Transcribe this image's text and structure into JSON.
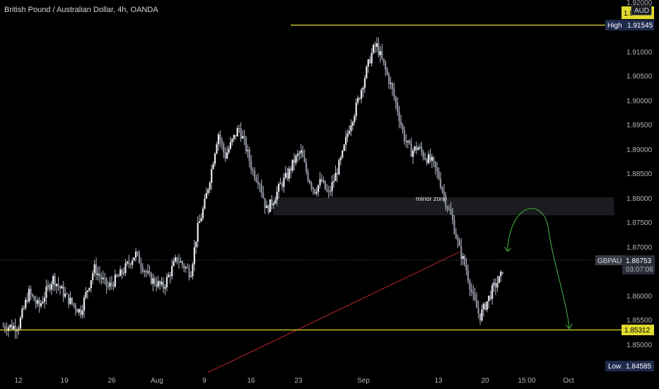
{
  "header": {
    "title": "British Pound / Australian Dollar, 4h, OANDA"
  },
  "axis": {
    "currency_label": "AUD"
  },
  "colors": {
    "background": "#000000",
    "candle": "#b7bcc7",
    "level_line": "#e0da2e",
    "trend_line": "#c0282c",
    "projection_arrow": "#3f9c3a",
    "zone_fill": "#1b1c20",
    "badge_dark": "#1e2b4d",
    "last_price_badge": "#3a3d45"
  },
  "badges": {
    "high": {
      "label": "High",
      "value": "1.91545"
    },
    "low": {
      "label": "Low",
      "value": "1.84585"
    },
    "support": {
      "value": "1.85312"
    },
    "last": {
      "symbol": "GBPAUD",
      "price": "1.86753",
      "countdown": "03:07:06"
    },
    "top_partial": "1.9"
  },
  "annotations": {
    "zone_label": "minor zone"
  },
  "chart_data": {
    "type": "candlestick",
    "title": "British Pound / Australian Dollar, 4h, OANDA",
    "y_axis": {
      "min": 1.845,
      "max": 1.92,
      "ticks": [
        "1.92000",
        "1.91000",
        "1.90500",
        "1.90000",
        "1.89500",
        "1.89000",
        "1.88500",
        "1.88000",
        "1.87500",
        "1.87000",
        "1.86000",
        "1.85500",
        "1.85000"
      ]
    },
    "x_axis": {
      "ticks": [
        "12",
        "19",
        "26",
        "Aug",
        "9",
        "16",
        "23",
        "Sep",
        "13",
        "20",
        "15:00",
        "Oct"
      ]
    },
    "close_path": [
      [
        0,
        1.854
      ],
      [
        1.5,
        1.861
      ],
      [
        3,
        1.858
      ],
      [
        5,
        1.864
      ],
      [
        7,
        1.86
      ],
      [
        9,
        1.857
      ],
      [
        11,
        1.866
      ],
      [
        13,
        1.862
      ],
      [
        15,
        1.865
      ],
      [
        17,
        1.869
      ],
      [
        19,
        1.864
      ],
      [
        21,
        1.862
      ],
      [
        23,
        1.868
      ],
      [
        25,
        1.865
      ],
      [
        26,
        1.874
      ],
      [
        27,
        1.879
      ],
      [
        28,
        1.886
      ],
      [
        29,
        1.894
      ],
      [
        30,
        1.889
      ],
      [
        31,
        1.892
      ],
      [
        32,
        1.895
      ],
      [
        33,
        1.891
      ],
      [
        34,
        1.886
      ],
      [
        35,
        1.884
      ],
      [
        36,
        1.878
      ],
      [
        37,
        1.88
      ],
      [
        38,
        1.883
      ],
      [
        39,
        1.885
      ],
      [
        40,
        1.888
      ],
      [
        41,
        1.89
      ],
      [
        42,
        1.885
      ],
      [
        43,
        1.882
      ],
      [
        44,
        1.884
      ],
      [
        45,
        1.881
      ],
      [
        46,
        1.885
      ],
      [
        47,
        1.889
      ],
      [
        48,
        1.895
      ],
      [
        49,
        1.899
      ],
      [
        50,
        1.904
      ],
      [
        51,
        1.909
      ],
      [
        51.5,
        1.911
      ],
      [
        52,
        1.912
      ],
      [
        53,
        1.908
      ],
      [
        54,
        1.904
      ],
      [
        55,
        1.899
      ],
      [
        56,
        1.893
      ],
      [
        57,
        1.89
      ],
      [
        58,
        1.891
      ],
      [
        59,
        1.889
      ],
      [
        60,
        1.888
      ],
      [
        61,
        1.885
      ],
      [
        62,
        1.88
      ],
      [
        63,
        1.876
      ],
      [
        64,
        1.87
      ],
      [
        65,
        1.866
      ],
      [
        66,
        1.86
      ],
      [
        67,
        1.856
      ],
      [
        68,
        1.859
      ],
      [
        69,
        1.862
      ],
      [
        70,
        1.864
      ],
      [
        70.5,
        1.867
      ]
    ],
    "levels": [
      {
        "price": 1.91545,
        "from_day": 52,
        "color": "#e0da2e"
      },
      {
        "price": 1.85312,
        "from_day": 0,
        "color": "#e0da2e"
      }
    ],
    "last_price": 1.86753,
    "zone": {
      "price_low": 1.8775,
      "price_high": 1.88,
      "from_day": 37,
      "to_day": 86.5,
      "label": "minor zone"
    },
    "trend_line": {
      "from": [
        27.5,
        1.8445
      ],
      "to": [
        64,
        1.8693
      ]
    },
    "projection": {
      "from": [
        71,
        1.8695
      ],
      "peak": [
        74.5,
        1.877
      ],
      "to": [
        80,
        1.8535
      ]
    }
  }
}
